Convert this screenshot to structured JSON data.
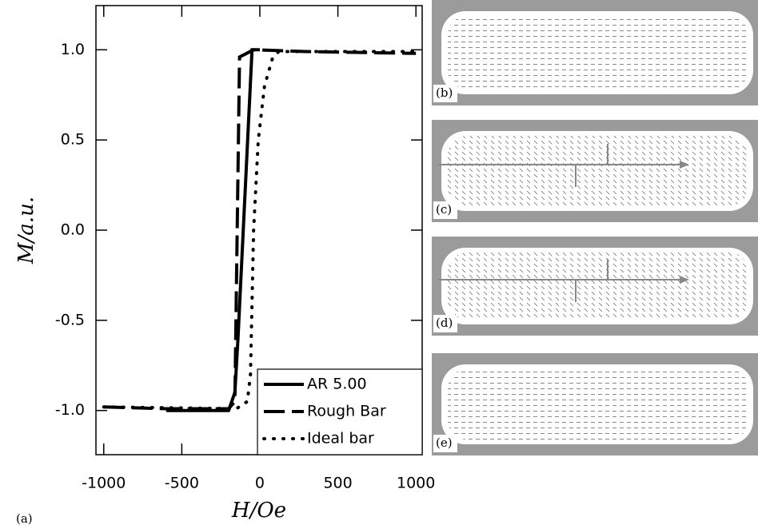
{
  "chart_data": {
    "type": "line",
    "panel_label": "(a)",
    "xlabel": "H/Oe",
    "ylabel": "M/a.u.",
    "xlim": [
      -1050,
      1040
    ],
    "ylim": [
      -1.245,
      1.245
    ],
    "xticks": [
      -1000,
      -500,
      0,
      500,
      1000
    ],
    "yticks": [
      {
        "value": 1.0,
        "label": "1.0"
      },
      {
        "value": 0.5,
        "label": "0.5"
      },
      {
        "value": 0.0,
        "label": "0.0"
      },
      {
        "value": -0.5,
        "label": "-0.5"
      },
      {
        "value": -1.0,
        "label": "-1.0"
      }
    ],
    "legend": "lower right",
    "series": [
      {
        "name": "AR 5.00",
        "color": "#000000",
        "style": "solid",
        "x": [
          -600,
          -200,
          -160,
          -140,
          -50,
          0
        ],
        "values": [
          -1.0,
          -1.0,
          -0.9,
          -0.6,
          1.0,
          1.0
        ]
      },
      {
        "name": "Rough Bar",
        "color": "#000000",
        "style": "dashed",
        "x": [
          -1000,
          -600,
          -200,
          -160,
          -130,
          -40,
          300,
          1000
        ],
        "values": [
          -0.98,
          -0.99,
          -0.99,
          -0.95,
          0.96,
          1.0,
          0.99,
          0.98
        ]
      },
      {
        "name": "Ideal bar",
        "color": "#000000",
        "style": "dotted",
        "x": [
          -1000,
          -150,
          -80,
          -60,
          -40,
          -10,
          30,
          80,
          120,
          1000
        ],
        "values": [
          -0.98,
          -0.99,
          -0.95,
          -0.8,
          0.0,
          0.5,
          0.8,
          0.95,
          0.99,
          0.99
        ]
      }
    ]
  },
  "panels": [
    {
      "label": "(b)"
    },
    {
      "label": "(c)"
    },
    {
      "label": "(d)"
    },
    {
      "label": "(e)"
    }
  ]
}
